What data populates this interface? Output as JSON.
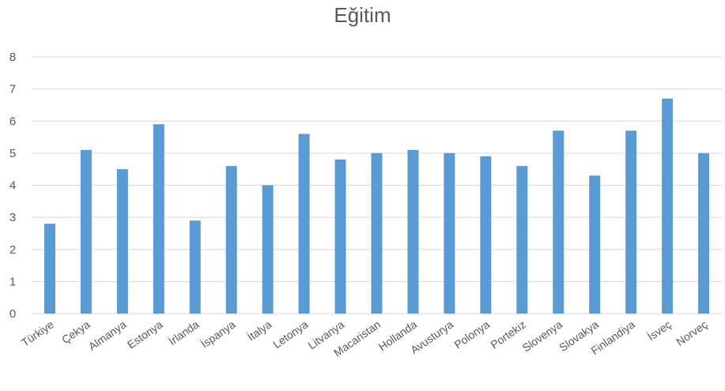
{
  "chart_data": {
    "type": "bar",
    "title": "Eğitim",
    "xlabel": "",
    "ylabel": "",
    "ylim": [
      0,
      8
    ],
    "yticks": [
      "0",
      "1",
      "2",
      "3",
      "4",
      "5",
      "6",
      "7",
      "8"
    ],
    "grid": true,
    "legend": "none",
    "bar_color": "#5B9BD5",
    "grid_color": "#D9D9D9",
    "categories": [
      "Türkiye",
      "Çekya",
      "Almanya",
      "Estonya",
      "İrlanda",
      "İspanya",
      "İtalya",
      "Letonya",
      "Litvanya",
      "Macaristan",
      "Hollanda",
      "Avusturya",
      "Polonya",
      "Portekiz",
      "Slovenya",
      "Slovakya",
      "Finlandiya",
      "İsveç",
      "Norveç"
    ],
    "values": [
      2.8,
      5.1,
      4.5,
      5.9,
      2.9,
      4.6,
      4.0,
      5.6,
      4.8,
      5.0,
      5.1,
      5.0,
      4.9,
      4.6,
      5.7,
      4.3,
      5.7,
      6.7,
      5.0
    ]
  }
}
